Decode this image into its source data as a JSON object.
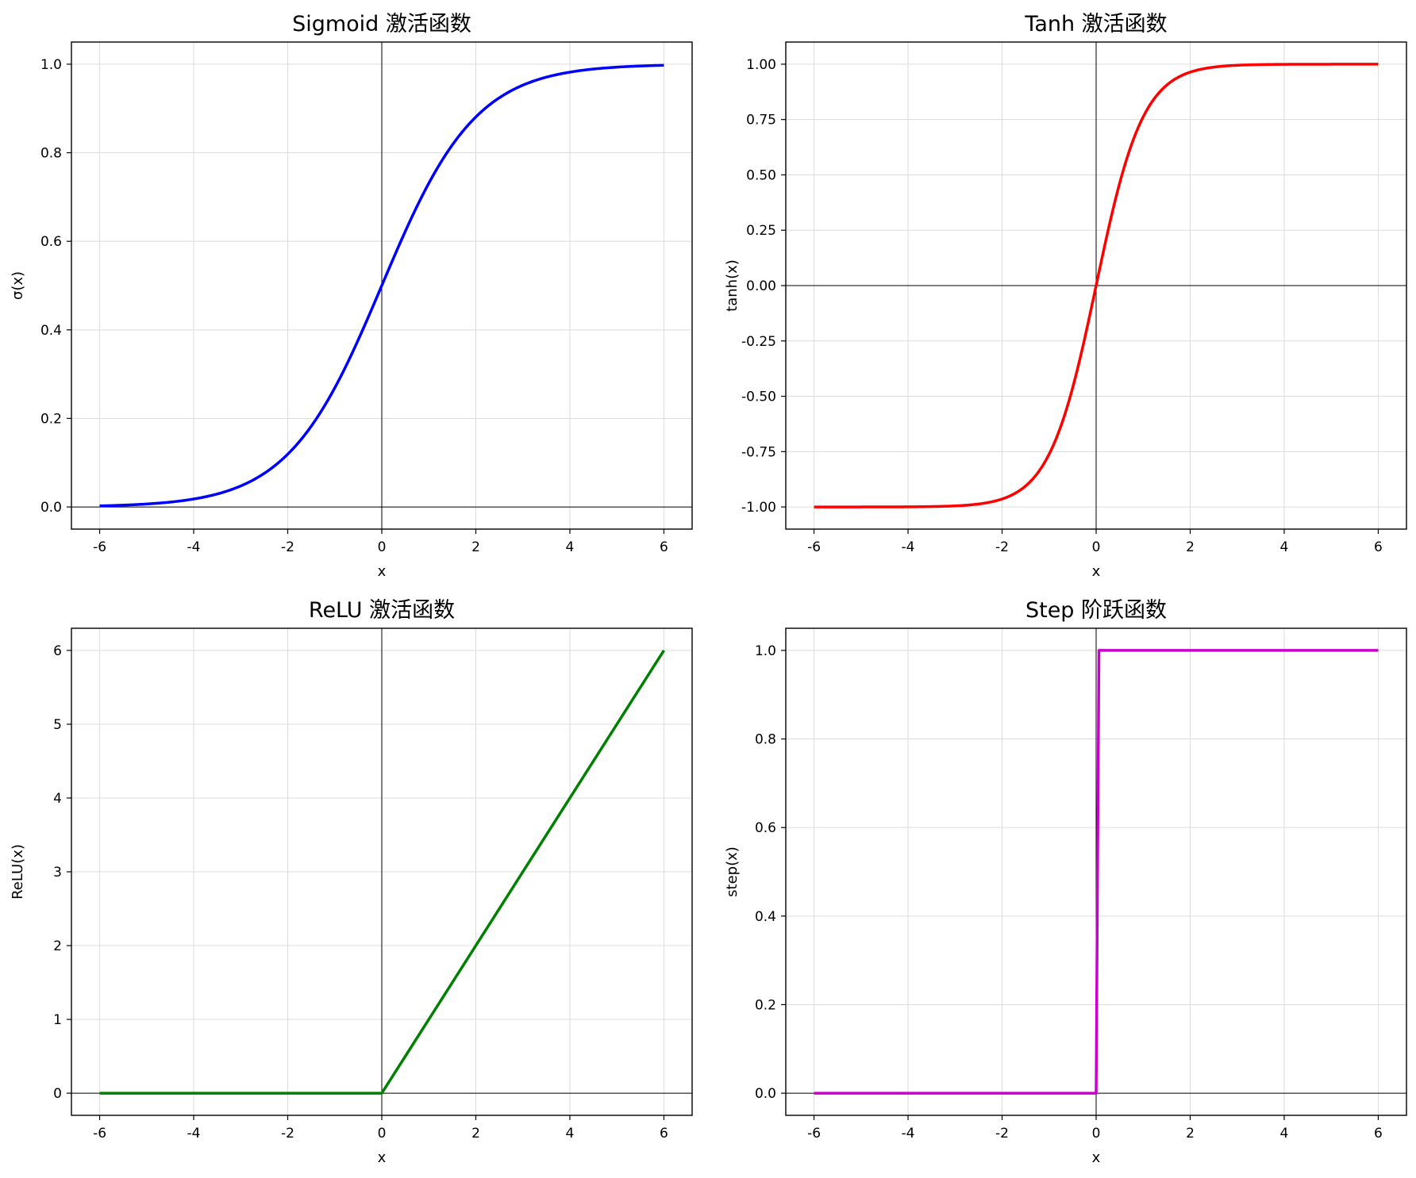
{
  "chart_data": [
    {
      "type": "line",
      "function": "sigmoid",
      "title": "Sigmoid 激活函数",
      "xlabel": "x",
      "ylabel": "σ(x)",
      "xlim": [
        -6.6,
        6.6
      ],
      "ylim": [
        -0.05,
        1.05
      ],
      "xticks": [
        -6,
        -4,
        -2,
        0,
        2,
        4,
        6
      ],
      "xtick_labels": [
        "-6",
        "-4",
        "-2",
        "0",
        "2",
        "4",
        "6"
      ],
      "yticks": [
        0,
        0.2,
        0.4,
        0.6,
        0.8,
        1.0
      ],
      "ytick_labels": [
        "0.0",
        "0.2",
        "0.4",
        "0.6",
        "0.8",
        "1.0"
      ],
      "grid": true,
      "color": "#0000ff",
      "x": [
        -6,
        -5,
        -4,
        -3,
        -2,
        -1,
        0,
        1,
        2,
        3,
        4,
        5,
        6
      ],
      "y": [
        0.0025,
        0.0067,
        0.018,
        0.047,
        0.119,
        0.269,
        0.5,
        0.731,
        0.881,
        0.953,
        0.982,
        0.9933,
        0.9975
      ]
    },
    {
      "type": "line",
      "function": "tanh",
      "title": "Tanh 激活函数",
      "xlabel": "x",
      "ylabel": "tanh(x)",
      "xlim": [
        -6.6,
        6.6
      ],
      "ylim": [
        -1.1,
        1.1
      ],
      "xticks": [
        -6,
        -4,
        -2,
        0,
        2,
        4,
        6
      ],
      "xtick_labels": [
        "-6",
        "-4",
        "-2",
        "0",
        "2",
        "4",
        "6"
      ],
      "yticks": [
        -1.0,
        -0.75,
        -0.5,
        -0.25,
        0,
        0.25,
        0.5,
        0.75,
        1.0
      ],
      "ytick_labels": [
        "-1.00",
        "-0.75",
        "-0.50",
        "-0.25",
        "0.00",
        "0.25",
        "0.50",
        "0.75",
        "1.00"
      ],
      "grid": true,
      "color": "#ff0000",
      "x": [
        -6,
        -4,
        -3,
        -2,
        -1.5,
        -1,
        -0.5,
        0,
        0.5,
        1,
        1.5,
        2,
        3,
        4,
        6
      ],
      "y": [
        -1.0,
        -0.999,
        -0.995,
        -0.964,
        -0.905,
        -0.762,
        -0.462,
        0,
        0.462,
        0.762,
        0.905,
        0.964,
        0.995,
        0.999,
        1.0
      ]
    },
    {
      "type": "line",
      "function": "relu",
      "title": "ReLU 激活函数",
      "xlabel": "x",
      "ylabel": "ReLU(x)",
      "xlim": [
        -6.6,
        6.6
      ],
      "ylim": [
        -0.3,
        6.3
      ],
      "xticks": [
        -6,
        -4,
        -2,
        0,
        2,
        4,
        6
      ],
      "xtick_labels": [
        "-6",
        "-4",
        "-2",
        "0",
        "2",
        "4",
        "6"
      ],
      "yticks": [
        0,
        1,
        2,
        3,
        4,
        5,
        6
      ],
      "ytick_labels": [
        "0",
        "1",
        "2",
        "3",
        "4",
        "5",
        "6"
      ],
      "grid": true,
      "color": "#008000",
      "x": [
        -6,
        0,
        6
      ],
      "y": [
        0,
        0,
        6
      ]
    },
    {
      "type": "line",
      "function": "step",
      "title": "Step 阶跃函数",
      "xlabel": "x",
      "ylabel": "step(x)",
      "xlim": [
        -6.6,
        6.6
      ],
      "ylim": [
        -0.05,
        1.05
      ],
      "xticks": [
        -6,
        -4,
        -2,
        0,
        2,
        4,
        6
      ],
      "xtick_labels": [
        "-6",
        "-4",
        "-2",
        "0",
        "2",
        "4",
        "6"
      ],
      "yticks": [
        0,
        0.2,
        0.4,
        0.6,
        0.8,
        1.0
      ],
      "ytick_labels": [
        "0.0",
        "0.2",
        "0.4",
        "0.6",
        "0.8",
        "1.0"
      ],
      "grid": true,
      "color": "#cc00cc",
      "x": [
        -6,
        0,
        0.06,
        6
      ],
      "y": [
        0,
        0,
        1,
        1
      ]
    }
  ]
}
